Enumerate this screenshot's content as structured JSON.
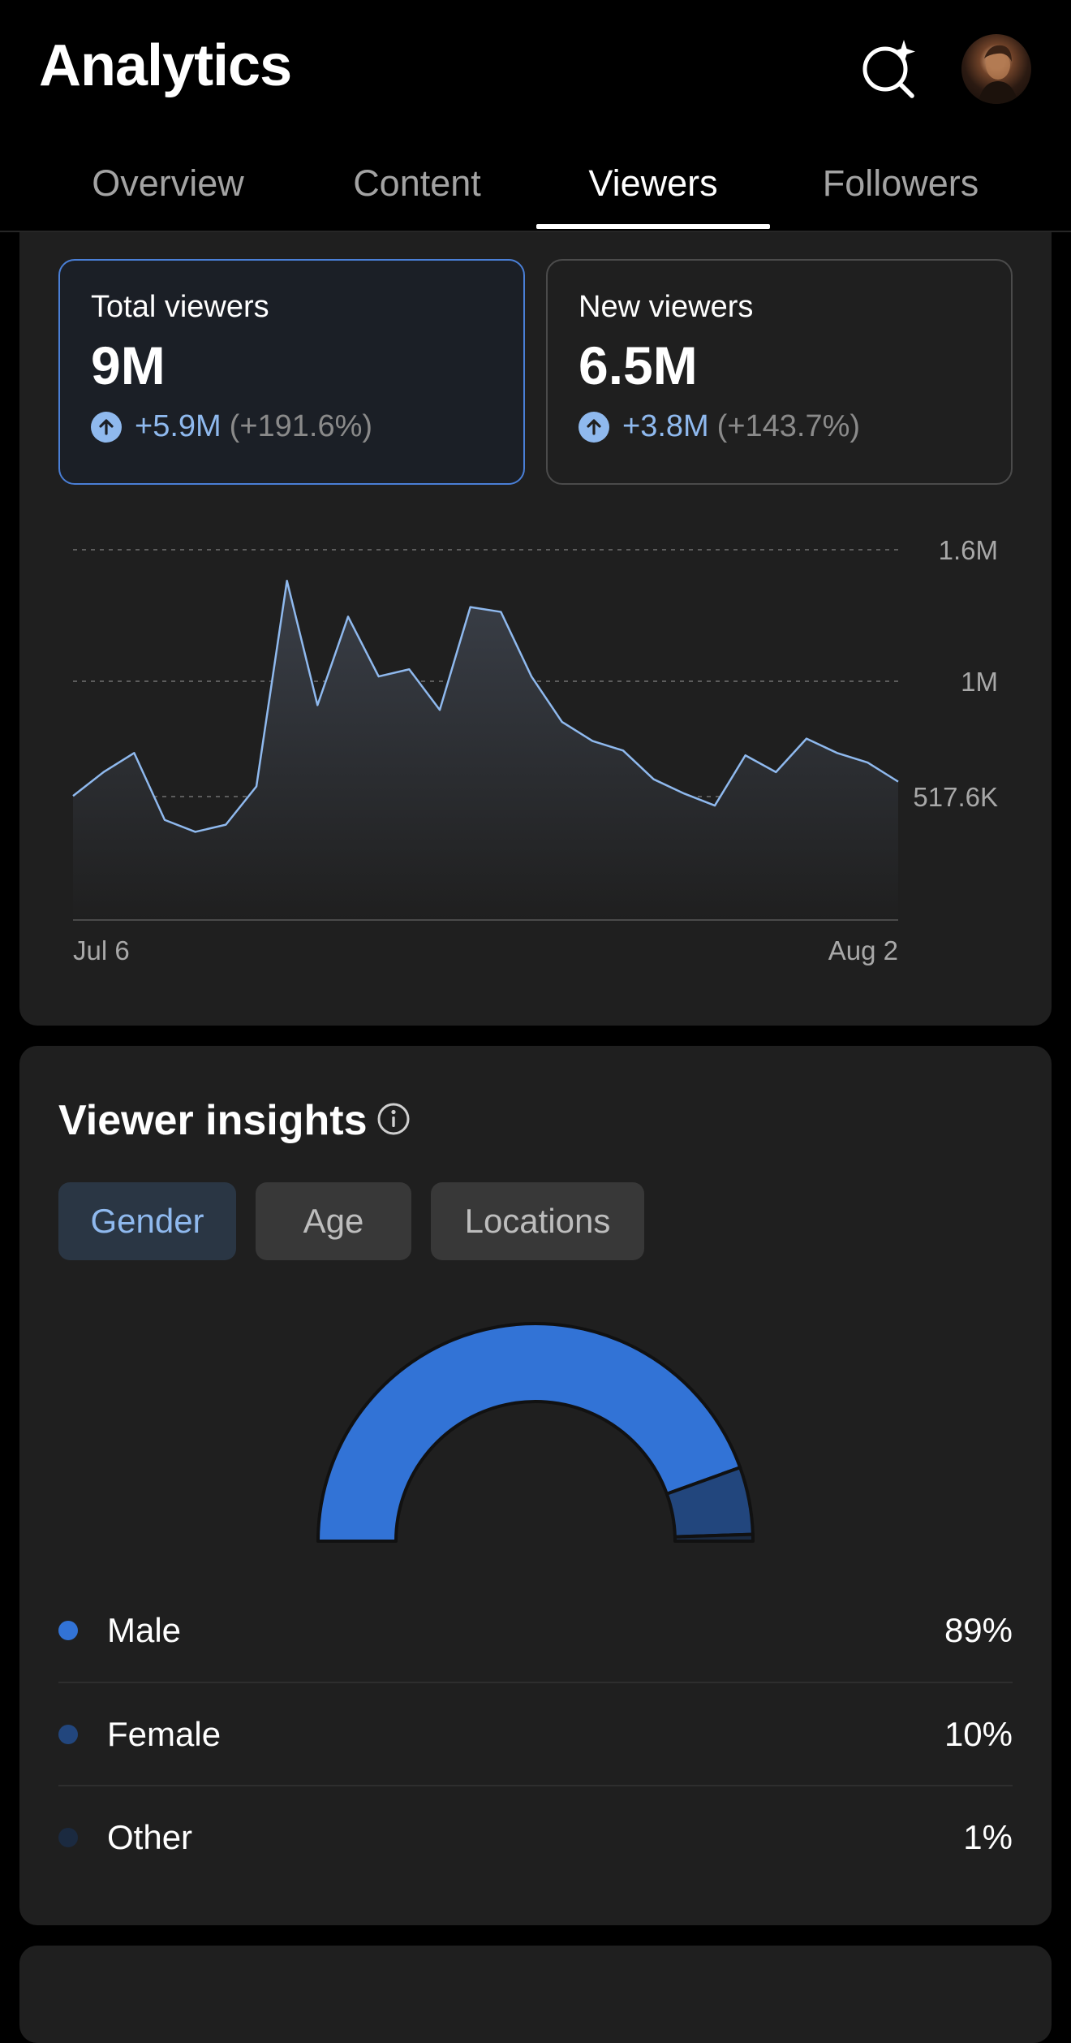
{
  "header": {
    "title": "Analytics",
    "tabs": [
      {
        "label": "Overview",
        "active": false
      },
      {
        "label": "Content",
        "active": false
      },
      {
        "label": "Viewers",
        "active": true
      },
      {
        "label": "Followers",
        "active": false
      }
    ],
    "icons": {
      "search": "ai-search-sparkle-icon",
      "avatar": "user-avatar"
    }
  },
  "stats": [
    {
      "label": "Total viewers",
      "value": "9M",
      "delta": "+5.9M",
      "delta_pct": "(+191.6%)",
      "selected": true
    },
    {
      "label": "New viewers",
      "value": "6.5M",
      "delta": "+3.8M",
      "delta_pct": "(+143.7%)",
      "selected": false
    }
  ],
  "chart_data": {
    "type": "area",
    "x_labels": [
      "Jul 6",
      "Aug 2"
    ],
    "y_ticks": [
      {
        "label": "1.6M",
        "value": 1550000
      },
      {
        "label": "1M",
        "value": 1000000
      },
      {
        "label": "517.6K",
        "value": 517600
      }
    ],
    "ylim": [
      0,
      1650000
    ],
    "grid": true,
    "series": [
      {
        "values": [
          520000,
          620000,
          700000,
          420000,
          370000,
          400000,
          560000,
          1420000,
          900000,
          1270000,
          1020000,
          1050000,
          880000,
          1310000,
          1290000,
          1020000,
          830000,
          750000,
          710000,
          590000,
          530000,
          480000,
          690000,
          620000,
          760000,
          700000,
          660000,
          580000
        ]
      }
    ],
    "colors": {
      "line": "#8fb9ee",
      "fill_top": "#3a3f48",
      "fill_bottom": "#1f1f1f"
    }
  },
  "insights": {
    "title": "Viewer insights",
    "info_icon": "info-icon",
    "chips": [
      {
        "label": "Gender",
        "active": true
      },
      {
        "label": "Age",
        "active": false
      },
      {
        "label": "Locations",
        "active": false
      }
    ],
    "gender": [
      {
        "name": "Male",
        "pct": "89%",
        "value": 89,
        "color": "#3273d6"
      },
      {
        "name": "Female",
        "pct": "10%",
        "value": 10,
        "color": "#22467d"
      },
      {
        "name": "Other",
        "pct": "1%",
        "value": 1,
        "color": "#1b2a40"
      }
    ]
  }
}
